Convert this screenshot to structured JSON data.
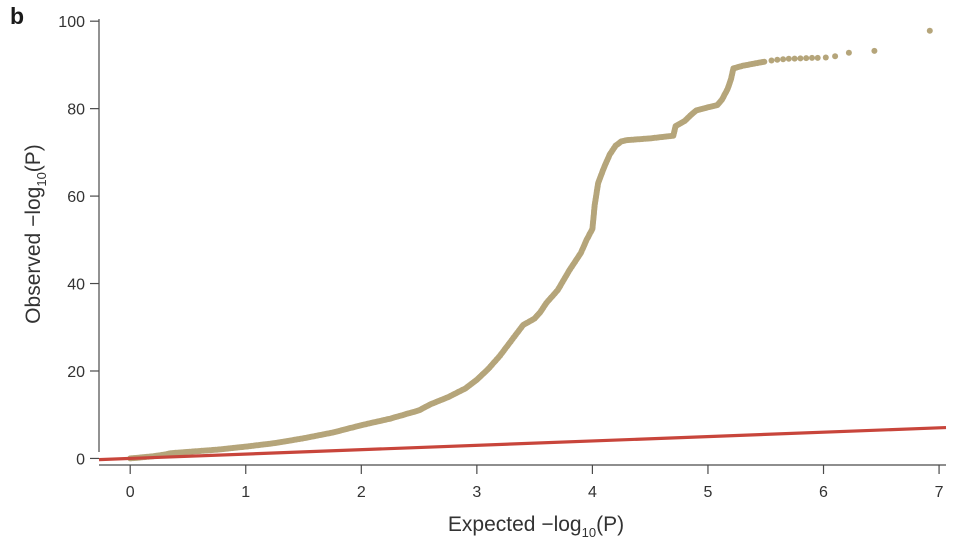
{
  "panel_label": "b",
  "chart_data": {
    "type": "scatter",
    "xlabel": {
      "prefix": "Expected −log",
      "sub": "10",
      "suffix": "(P)"
    },
    "ylabel": {
      "prefix": "Observed −log",
      "sub": "10",
      "suffix": "(P)"
    },
    "xlim": [
      -0.27,
      7.06
    ],
    "ylim": [
      -1.5,
      100.5
    ],
    "x_ticks": [
      0,
      1,
      2,
      3,
      4,
      5,
      6,
      7
    ],
    "x_tick_labels": [
      "0",
      "1",
      "2",
      "3",
      "4",
      "5",
      "6",
      "7"
    ],
    "y_ticks": [
      0,
      20,
      40,
      60,
      80,
      100
    ],
    "y_tick_labels": [
      "0",
      "20",
      "40",
      "60",
      "80",
      "100"
    ],
    "grid": false,
    "reference_line": {
      "slope": 1,
      "intercept": 0,
      "color": "#c8453b"
    },
    "point_color": "#b5a57a",
    "dense_curve": [
      [
        0.0,
        0.0
      ],
      [
        0.2,
        0.5
      ],
      [
        0.3,
        0.9
      ],
      [
        0.35,
        1.2
      ],
      [
        0.5,
        1.5
      ],
      [
        0.75,
        2.0
      ],
      [
        1.0,
        2.7
      ],
      [
        1.25,
        3.5
      ],
      [
        1.5,
        4.6
      ],
      [
        1.75,
        5.9
      ],
      [
        2.0,
        7.6
      ],
      [
        2.25,
        9.1
      ],
      [
        2.5,
        11.0
      ],
      [
        2.6,
        12.4
      ],
      [
        2.75,
        14.0
      ],
      [
        2.9,
        16.0
      ],
      [
        3.0,
        18.0
      ],
      [
        3.1,
        20.5
      ],
      [
        3.2,
        23.5
      ],
      [
        3.3,
        27.0
      ],
      [
        3.4,
        30.5
      ],
      [
        3.5,
        32.0
      ],
      [
        3.55,
        33.5
      ],
      [
        3.6,
        35.5
      ],
      [
        3.7,
        38.5
      ],
      [
        3.8,
        43.0
      ],
      [
        3.9,
        47.0
      ],
      [
        3.95,
        50.0
      ],
      [
        4.0,
        52.5
      ],
      [
        4.02,
        58.0
      ],
      [
        4.05,
        63.0
      ],
      [
        4.1,
        66.5
      ],
      [
        4.15,
        69.5
      ],
      [
        4.2,
        71.5
      ],
      [
        4.25,
        72.5
      ],
      [
        4.3,
        72.8
      ],
      [
        4.5,
        73.2
      ],
      [
        4.7,
        73.8
      ],
      [
        4.72,
        76.0
      ],
      [
        4.8,
        77.2
      ],
      [
        4.85,
        78.5
      ],
      [
        4.9,
        79.6
      ],
      [
        5.0,
        80.3
      ],
      [
        5.08,
        80.8
      ],
      [
        5.12,
        82.0
      ],
      [
        5.17,
        84.5
      ],
      [
        5.2,
        86.8
      ],
      [
        5.22,
        89.2
      ],
      [
        5.3,
        89.8
      ],
      [
        5.4,
        90.3
      ],
      [
        5.5,
        90.8
      ]
    ],
    "sparse_points": [
      [
        5.55,
        91.0
      ],
      [
        5.6,
        91.2
      ],
      [
        5.65,
        91.3
      ],
      [
        5.7,
        91.4
      ],
      [
        5.75,
        91.45
      ],
      [
        5.8,
        91.5
      ],
      [
        5.85,
        91.55
      ],
      [
        5.9,
        91.6
      ],
      [
        5.95,
        91.6
      ],
      [
        6.02,
        91.7
      ],
      [
        6.1,
        92.0
      ],
      [
        6.22,
        92.8
      ],
      [
        6.44,
        93.2
      ],
      [
        6.92,
        97.8
      ]
    ]
  }
}
